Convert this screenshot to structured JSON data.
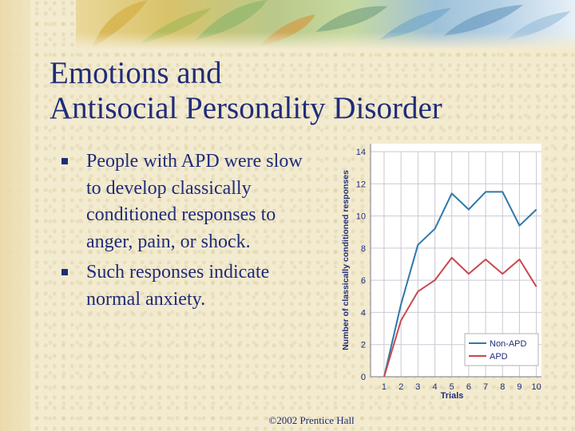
{
  "slide": {
    "title_line1": "Emotions and",
    "title_line2": "Antisocial Personality Disorder",
    "bullets": [
      "People with APD were slow to develop classically conditioned responses to anger, pain, or shock.",
      "Such responses indicate normal anxiety."
    ],
    "footer": "©2002 Prentice Hall"
  },
  "colors": {
    "title_text": "#1f2c7a",
    "non_apd": "#2f78a8",
    "apd": "#c8494f",
    "grid": "#c9c9d3"
  },
  "chart_data": {
    "type": "line",
    "title": "",
    "xlabel": "Trials",
    "ylabel": "Number of classically conditioned responses",
    "x": [
      1,
      2,
      3,
      4,
      5,
      6,
      7,
      8,
      9,
      10
    ],
    "xlim": [
      0.2,
      10.3
    ],
    "ylim": [
      0,
      14
    ],
    "yticks": [
      0,
      2,
      4,
      6,
      8,
      10,
      12,
      14
    ],
    "grid": true,
    "legend_position": "bottom-right",
    "series": [
      {
        "name": "Non-APD",
        "color": "#2f78a8",
        "values": [
          0,
          4.5,
          8.2,
          9.2,
          11.4,
          10.4,
          11.5,
          11.5,
          9.4,
          10.4
        ]
      },
      {
        "name": "APD",
        "color": "#c8494f",
        "values": [
          0,
          3.5,
          5.3,
          6.0,
          7.4,
          6.4,
          7.3,
          6.4,
          7.3,
          5.6
        ]
      }
    ]
  }
}
